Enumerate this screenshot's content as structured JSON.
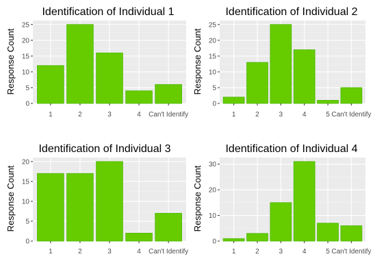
{
  "colors": {
    "panel_bg": "#ebebeb",
    "grid_major": "#ffffff",
    "grid_minor": "#f4f4f4",
    "bar_fill": "#66cc00",
    "bar_stroke": "#4cb800",
    "tick_text": "#4d4d4d",
    "tick_mark": "#333333"
  },
  "chart_data": [
    {
      "type": "bar",
      "title": "Identification of Individual 1",
      "xlabel": "",
      "ylabel": "Response Count",
      "categories": [
        "1",
        "2",
        "3",
        "4",
        "Can't Identify"
      ],
      "values": [
        12,
        25,
        16,
        4,
        6
      ],
      "ylim": [
        0,
        26.25
      ],
      "yticks": [
        0,
        5,
        10,
        15,
        20,
        25
      ],
      "grid": true,
      "legend": "none"
    },
    {
      "type": "bar",
      "title": "Identification of Individual 2",
      "xlabel": "",
      "ylabel": "Response Count",
      "categories": [
        "1",
        "2",
        "3",
        "4",
        "5",
        "Can't Identify"
      ],
      "values": [
        2,
        13,
        25,
        17,
        1,
        5
      ],
      "ylim": [
        0,
        26.25
      ],
      "yticks": [
        0,
        5,
        10,
        15,
        20,
        25
      ],
      "grid": true,
      "legend": "none"
    },
    {
      "type": "bar",
      "title": "Identification of Individual 3",
      "xlabel": "",
      "ylabel": "Response Count",
      "categories": [
        "1",
        "2",
        "3",
        "4",
        "Can't Identify"
      ],
      "values": [
        17,
        17,
        20,
        2,
        7
      ],
      "ylim": [
        0,
        21
      ],
      "yticks": [
        0,
        5,
        10,
        15,
        20
      ],
      "grid": true,
      "legend": "none"
    },
    {
      "type": "bar",
      "title": "Identification of Individual 4",
      "xlabel": "",
      "ylabel": "Response Count",
      "categories": [
        "1",
        "2",
        "3",
        "4",
        "5",
        "Can't Identify"
      ],
      "values": [
        1,
        3,
        15,
        31,
        7,
        6
      ],
      "ylim": [
        0,
        32.55
      ],
      "yticks": [
        0,
        10,
        20,
        30
      ],
      "grid": true,
      "legend": "none"
    }
  ]
}
